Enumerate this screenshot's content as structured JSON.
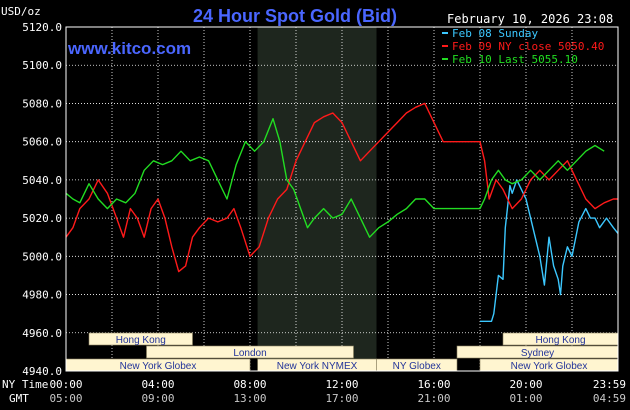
{
  "header": {
    "title": "24 Hour Spot Gold (Bid)",
    "unit": "USD/oz",
    "site": "www.kitco.com",
    "timestamp": "February 10, 2026 23:08"
  },
  "legend": [
    {
      "label": "Feb 08 Sunday",
      "color": "#3cc8ff"
    },
    {
      "label": "Feb 09 NY close 5050.40",
      "color": "#ff1a1a"
    },
    {
      "label": "Feb 10 Last 5055.10",
      "color": "#22dd22"
    }
  ],
  "axis_labels": {
    "ny_time": "NY Time",
    "gmt": "GMT"
  },
  "sessions": [
    {
      "label": "Hong Kong",
      "start": 1.0,
      "end": 5.5,
      "row": 0
    },
    {
      "label": "Hong Kong",
      "start": 19.0,
      "end": 24.0,
      "row": 0
    },
    {
      "label": "London",
      "start": 3.5,
      "end": 12.5,
      "row": 1
    },
    {
      "label": "Sydney",
      "start": 17.0,
      "end": 24.0,
      "row": 1
    },
    {
      "label": "New York Globex",
      "start": 0.0,
      "end": 8.0,
      "row": 2
    },
    {
      "label": "New York NYMEX",
      "start": 8.33,
      "end": 13.5,
      "row": 2
    },
    {
      "label": "NY Globex",
      "start": 13.5,
      "end": 17.0,
      "row": 2
    },
    {
      "label": "New York Globex",
      "start": 18.0,
      "end": 24.0,
      "row": 2
    }
  ],
  "colors": {
    "background": "#000000",
    "nymex_shade": "#1e261e",
    "grid": "#ffffff",
    "title": "#4a66ff",
    "site": "#4a66ff",
    "session_fill": "#fff5d0",
    "session_text": "#223399"
  },
  "chart_data": {
    "type": "line",
    "title": "24 Hour Spot Gold (Bid)",
    "ylabel": "USD/oz",
    "ylim": [
      4940,
      5120
    ],
    "yticks": [
      "5120.0",
      "5100.0",
      "5080.0",
      "5060.0",
      "5040.0",
      "5020.0",
      "5000.0",
      "4980.0",
      "4960.0",
      "4940.0"
    ],
    "xlim": [
      0,
      24
    ],
    "xticks_ny": [
      "00:00",
      "04:00",
      "08:00",
      "12:00",
      "16:00",
      "20:00",
      "23:59"
    ],
    "xticks_gmt": [
      "05:00",
      "09:00",
      "13:00",
      "17:00",
      "21:00",
      "01:00",
      "04:59"
    ],
    "nymex_shade": [
      8.33,
      13.5
    ],
    "grid": true,
    "legend_position": "top-right",
    "series": [
      {
        "name": "Feb 08 Sunday",
        "color": "#3cc8ff",
        "x": [
          18.0,
          18.5,
          18.6,
          18.8,
          19.0,
          19.1,
          19.3,
          19.4,
          19.6,
          19.8,
          20.0,
          20.2,
          20.4,
          20.6,
          20.8,
          21.0,
          21.2,
          21.4,
          21.5,
          21.6,
          21.8,
          22.0,
          22.3,
          22.6,
          22.8,
          23.0,
          23.2,
          23.5,
          23.8,
          24.0
        ],
        "y": [
          4966,
          4966,
          4970,
          4990,
          4988,
          5015,
          5037,
          5033,
          5040,
          5035,
          5030,
          5020,
          5010,
          5000,
          4985,
          5010,
          4995,
          4988,
          4980,
          4995,
          5005,
          5000,
          5018,
          5025,
          5020,
          5020,
          5015,
          5020,
          5015,
          5012
        ]
      },
      {
        "name": "Feb 09 NY close 5050.40",
        "color": "#ff1a1a",
        "x": [
          0.0,
          0.3,
          0.6,
          1.0,
          1.4,
          1.8,
          2.2,
          2.5,
          2.8,
          3.1,
          3.4,
          3.7,
          4.0,
          4.3,
          4.6,
          4.9,
          5.2,
          5.5,
          5.8,
          6.2,
          6.6,
          7.0,
          7.3,
          7.6,
          8.0,
          8.4,
          8.8,
          9.2,
          9.6,
          10.0,
          10.4,
          10.8,
          11.2,
          11.6,
          12.0,
          12.4,
          12.8,
          13.2,
          13.6,
          14.0,
          14.4,
          14.8,
          15.2,
          15.6,
          16.0,
          16.4,
          16.8,
          17.2,
          17.6,
          18.0,
          18.2,
          18.4,
          18.7,
          19.0,
          19.4,
          19.8,
          20.2,
          20.6,
          21.0,
          21.4,
          21.8,
          22.2,
          22.6,
          23.0,
          23.4,
          23.8,
          24.0
        ],
        "y": [
          5010,
          5015,
          5025,
          5030,
          5040,
          5033,
          5020,
          5010,
          5025,
          5020,
          5010,
          5025,
          5030,
          5020,
          5005,
          4992,
          4995,
          5010,
          5015,
          5020,
          5018,
          5020,
          5025,
          5015,
          5000,
          5005,
          5020,
          5030,
          5035,
          5050,
          5060,
          5070,
          5073,
          5075,
          5070,
          5060,
          5050,
          5055,
          5060,
          5065,
          5070,
          5075,
          5078,
          5080,
          5070,
          5060,
          5060,
          5060,
          5060,
          5060,
          5050,
          5030,
          5040,
          5035,
          5025,
          5030,
          5040,
          5045,
          5040,
          5045,
          5050,
          5040,
          5030,
          5025,
          5028,
          5030,
          5030
        ]
      },
      {
        "name": "Feb 10 Last 5055.10",
        "color": "#22dd22",
        "x": [
          0.0,
          0.3,
          0.6,
          1.0,
          1.4,
          1.8,
          2.2,
          2.6,
          3.0,
          3.4,
          3.8,
          4.2,
          4.6,
          5.0,
          5.4,
          5.8,
          6.2,
          6.6,
          7.0,
          7.4,
          7.8,
          8.2,
          8.6,
          9.0,
          9.3,
          9.6,
          9.9,
          10.2,
          10.5,
          10.8,
          11.2,
          11.6,
          12.0,
          12.4,
          12.8,
          13.2,
          13.6,
          14.0,
          14.4,
          14.8,
          15.2,
          15.6,
          16.0,
          16.4,
          16.8,
          17.2,
          17.6,
          18.0,
          18.2,
          18.5,
          18.8,
          19.1,
          19.4,
          19.8,
          20.2,
          20.6,
          21.0,
          21.4,
          21.8,
          22.2,
          22.6,
          23.0,
          23.4
        ],
        "y": [
          5033,
          5030,
          5028,
          5038,
          5030,
          5025,
          5030,
          5028,
          5033,
          5045,
          5050,
          5048,
          5050,
          5055,
          5050,
          5052,
          5050,
          5040,
          5030,
          5048,
          5060,
          5055,
          5060,
          5072,
          5060,
          5040,
          5035,
          5025,
          5015,
          5020,
          5025,
          5020,
          5022,
          5030,
          5020,
          5010,
          5015,
          5018,
          5022,
          5025,
          5030,
          5030,
          5025,
          5025,
          5025,
          5025,
          5025,
          5025,
          5030,
          5040,
          5045,
          5040,
          5038,
          5040,
          5045,
          5040,
          5045,
          5050,
          5045,
          5050,
          5055,
          5058,
          5055
        ]
      }
    ]
  }
}
